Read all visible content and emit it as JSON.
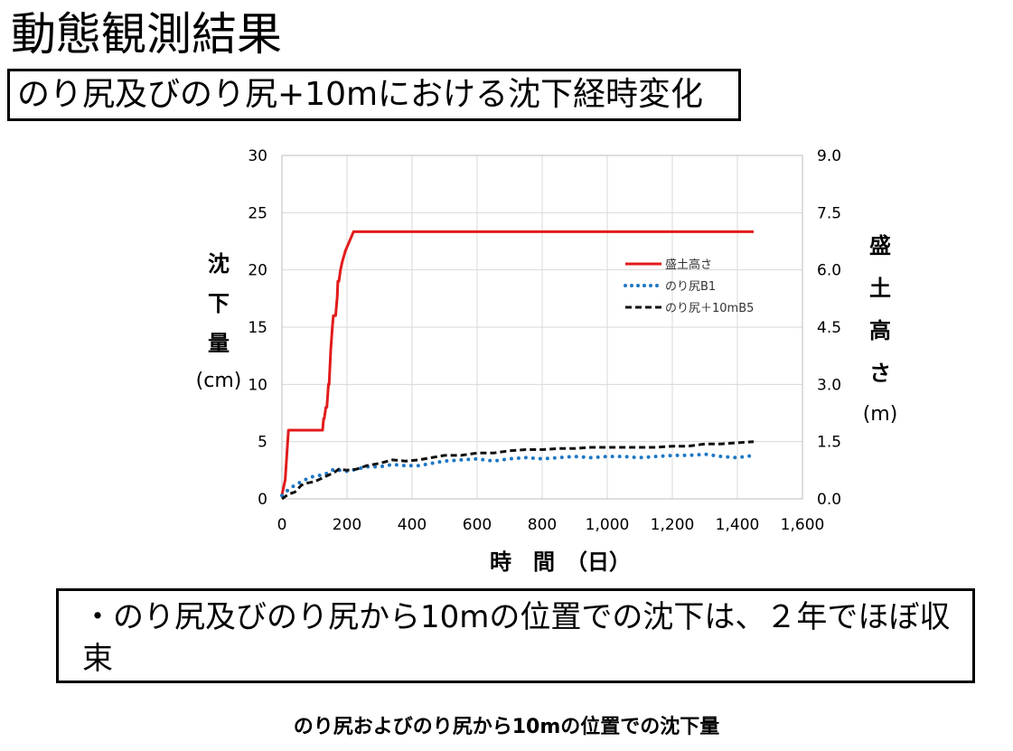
{
  "page": {
    "title": "動態観測結果",
    "subtitle": "のり尻及びのり尻+10mにおける沈下経時変化",
    "note": "・のり尻及びのり尻から10mの位置での沈下は、２年でほぼ収束",
    "caption": "のり尻およびのり尻から10mの位置での沈下量"
  },
  "chart_data": {
    "type": "line",
    "xlabel": "時　間　（日）",
    "ylabel_left_chars": [
      "沈",
      "下",
      "量"
    ],
    "ylabel_left_unit": "(cm)",
    "ylabel_right_chars": [
      "盛",
      "土",
      "高",
      "さ"
    ],
    "ylabel_right_unit": "(m)",
    "xlim": [
      0,
      1600
    ],
    "ylim_left": [
      0,
      30
    ],
    "ylim_right": [
      0,
      9
    ],
    "x_ticks": [
      "0",
      "200",
      "400",
      "600",
      "800",
      "1,000",
      "1,200",
      "1,400",
      "1,600"
    ],
    "y_left_ticks": [
      "0",
      "5",
      "10",
      "15",
      "20",
      "25",
      "30"
    ],
    "y_right_ticks": [
      "0.0",
      "1.5",
      "3.0",
      "4.5",
      "6.0",
      "7.5",
      "9.0"
    ],
    "grid": true,
    "legend_position": "top-right",
    "series": [
      {
        "name": "盛土高さ",
        "axis": "right",
        "color": "#e21b1b",
        "style": "solid",
        "x": [
          0,
          10,
          20,
          22,
          125,
          128,
          130,
          135,
          138,
          143,
          145,
          150,
          155,
          158,
          165,
          170,
          172,
          175,
          180,
          185,
          195,
          210,
          220,
          1450
        ],
        "y": [
          0.1,
          0.5,
          1.8,
          1.8,
          1.8,
          2.1,
          2.1,
          2.4,
          2.4,
          3.0,
          3.0,
          3.9,
          4.5,
          4.8,
          4.8,
          5.3,
          5.7,
          5.7,
          6.0,
          6.2,
          6.5,
          6.8,
          7.0,
          7.0
        ]
      },
      {
        "name": "のり尻B1",
        "axis": "left",
        "color": "#1f77c4",
        "style": "dotted",
        "x": [
          0,
          20,
          40,
          60,
          80,
          100,
          130,
          160,
          175,
          200,
          230,
          260,
          300,
          340,
          380,
          420,
          460,
          500,
          550,
          600,
          650,
          700,
          750,
          800,
          850,
          900,
          950,
          1000,
          1050,
          1100,
          1150,
          1200,
          1250,
          1300,
          1350,
          1400,
          1450
        ],
        "y": [
          0.3,
          0.8,
          1.2,
          1.5,
          1.8,
          2.0,
          2.1,
          2.6,
          2.5,
          2.4,
          2.6,
          2.8,
          2.8,
          3.0,
          2.9,
          2.9,
          3.1,
          3.3,
          3.4,
          3.5,
          3.3,
          3.5,
          3.6,
          3.5,
          3.6,
          3.7,
          3.6,
          3.7,
          3.7,
          3.6,
          3.7,
          3.8,
          3.8,
          3.9,
          3.7,
          3.6,
          3.8
        ]
      },
      {
        "name": "のり尻＋10mB5",
        "axis": "left",
        "color": "#111111",
        "style": "dashed",
        "x": [
          0,
          20,
          40,
          60,
          80,
          100,
          130,
          160,
          175,
          200,
          230,
          260,
          300,
          340,
          380,
          420,
          460,
          500,
          550,
          600,
          650,
          700,
          750,
          800,
          850,
          900,
          950,
          1000,
          1050,
          1100,
          1150,
          1200,
          1250,
          1300,
          1350,
          1400,
          1450
        ],
        "y": [
          0.0,
          0.4,
          0.6,
          1.2,
          1.4,
          1.5,
          1.9,
          2.3,
          2.6,
          2.5,
          2.6,
          2.9,
          3.1,
          3.4,
          3.3,
          3.4,
          3.6,
          3.8,
          3.8,
          4.0,
          4.0,
          4.2,
          4.3,
          4.3,
          4.4,
          4.4,
          4.5,
          4.5,
          4.5,
          4.5,
          4.5,
          4.6,
          4.6,
          4.8,
          4.8,
          4.9,
          5.0
        ]
      }
    ]
  }
}
